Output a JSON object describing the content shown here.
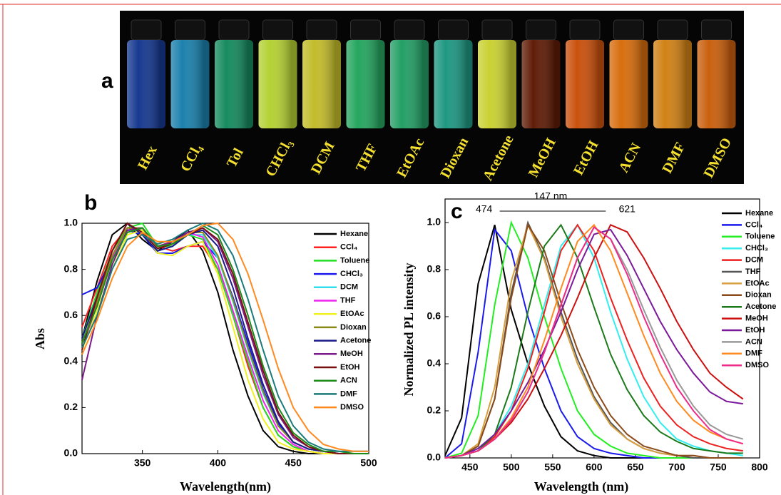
{
  "panel_a": {
    "label": "a",
    "vials": [
      {
        "label": "Hex",
        "color": "#1a3fa0"
      },
      {
        "label": "CCl₄",
        "color": "#1f8fc0"
      },
      {
        "label": "Tol",
        "color": "#1a9a6a"
      },
      {
        "label": "CHCl₃",
        "color": "#c8e83a"
      },
      {
        "label": "DCM",
        "color": "#d8d030"
      },
      {
        "label": "THF",
        "color": "#2ab86a"
      },
      {
        "label": "EtOAc",
        "color": "#28b070"
      },
      {
        "label": "Dioxan",
        "color": "#22a890"
      },
      {
        "label": "Acetone",
        "color": "#e0e838"
      },
      {
        "label": "MeOH",
        "color": "#6a2008"
      },
      {
        "label": "EtOH",
        "color": "#e05a10"
      },
      {
        "label": "ACN",
        "color": "#f07a10"
      },
      {
        "label": "DMF",
        "color": "#e89018"
      },
      {
        "label": "DMSO",
        "color": "#e06a10"
      }
    ]
  },
  "chart_data": [
    {
      "type": "line",
      "panel_label": "b",
      "x_label": "Wavelength(nm)",
      "y_label": "Abs",
      "x": [
        310,
        320,
        330,
        340,
        350,
        360,
        370,
        380,
        390,
        400,
        410,
        420,
        430,
        440,
        450,
        460,
        470,
        480,
        490,
        500
      ],
      "xlim": [
        310,
        500
      ],
      "xticks": [
        350,
        400,
        450,
        500
      ],
      "ylim": [
        0,
        1.0
      ],
      "yticks": [
        {
          "value": 0,
          "label": "0.0"
        },
        {
          "value": 0.2,
          "label": "0.2"
        },
        {
          "value": 0.4,
          "label": "0.4"
        },
        {
          "value": 0.6,
          "label": "0.6"
        },
        {
          "value": 0.8,
          "label": "0.8"
        },
        {
          "value": 1.0,
          "label": "1.0"
        }
      ],
      "series": [
        {
          "name": "Hexane",
          "color": "#000000",
          "values": [
            0.5,
            0.75,
            0.95,
            1.0,
            0.93,
            0.88,
            0.92,
            0.97,
            0.88,
            0.7,
            0.45,
            0.25,
            0.1,
            0.03,
            0.01,
            0,
            0,
            0,
            0,
            0
          ]
        },
        {
          "name": "CCl₄",
          "color": "#ff2020",
          "values": [
            0.55,
            0.72,
            0.9,
            0.98,
            0.97,
            0.9,
            0.88,
            0.9,
            0.9,
            0.8,
            0.6,
            0.38,
            0.2,
            0.08,
            0.03,
            0.01,
            0,
            0,
            0,
            0
          ]
        },
        {
          "name": "Toluene",
          "color": "#22dd22",
          "values": [
            0.5,
            0.7,
            0.88,
            0.98,
            1.0,
            0.9,
            0.9,
            0.95,
            0.93,
            0.8,
            0.6,
            0.4,
            0.2,
            0.08,
            0.03,
            0.01,
            0,
            0,
            0,
            0
          ]
        },
        {
          "name": "CHCl₃",
          "color": "#1a1aee",
          "values": [
            0.69,
            0.72,
            0.85,
            0.97,
            0.95,
            0.87,
            0.87,
            0.9,
            0.92,
            0.85,
            0.68,
            0.48,
            0.28,
            0.13,
            0.05,
            0.02,
            0.01,
            0,
            0,
            0
          ]
        },
        {
          "name": "DCM",
          "color": "#33ddee",
          "values": [
            0.5,
            0.68,
            0.86,
            0.97,
            0.97,
            0.88,
            0.9,
            0.95,
            0.95,
            0.85,
            0.66,
            0.45,
            0.26,
            0.12,
            0.05,
            0.02,
            0.01,
            0,
            0,
            0
          ]
        },
        {
          "name": "THF",
          "color": "#ee22ee",
          "values": [
            0.45,
            0.65,
            0.85,
            0.98,
            0.98,
            0.9,
            0.92,
            0.96,
            0.94,
            0.82,
            0.62,
            0.42,
            0.23,
            0.1,
            0.04,
            0.01,
            0,
            0,
            0,
            0
          ]
        },
        {
          "name": "EtOAc",
          "color": "#f0f020",
          "values": [
            0.45,
            0.62,
            0.8,
            0.95,
            0.97,
            0.87,
            0.86,
            0.9,
            0.92,
            0.78,
            0.55,
            0.32,
            0.15,
            0.05,
            0.02,
            0.01,
            0,
            0,
            0,
            0
          ]
        },
        {
          "name": "Dioxan",
          "color": "#8a8a1a",
          "values": [
            0.48,
            0.66,
            0.86,
            0.98,
            0.98,
            0.9,
            0.91,
            0.96,
            0.96,
            0.86,
            0.67,
            0.46,
            0.27,
            0.12,
            0.05,
            0.02,
            0.01,
            0,
            0,
            0
          ]
        },
        {
          "name": "Acetone",
          "color": "#1a1a88",
          "values": [
            0.5,
            0.68,
            0.88,
            1.0,
            0.95,
            0.88,
            0.9,
            0.95,
            0.97,
            0.9,
            0.72,
            0.5,
            0.3,
            0.14,
            0.05,
            0.02,
            0.01,
            0,
            0,
            0
          ]
        },
        {
          "name": "MeOH",
          "color": "#7a1a8a",
          "values": [
            0.32,
            0.6,
            0.82,
            0.97,
            0.98,
            0.9,
            0.92,
            0.96,
            0.98,
            0.92,
            0.76,
            0.55,
            0.34,
            0.17,
            0.07,
            0.03,
            0.01,
            0,
            0,
            0
          ]
        },
        {
          "name": "EtOH",
          "color": "#7a1010",
          "values": [
            0.45,
            0.68,
            0.88,
            1.0,
            0.96,
            0.89,
            0.91,
            0.95,
            0.98,
            0.93,
            0.78,
            0.57,
            0.36,
            0.18,
            0.08,
            0.03,
            0.01,
            0,
            0,
            0
          ]
        },
        {
          "name": "ACN",
          "color": "#1a8a1a",
          "values": [
            0.48,
            0.64,
            0.84,
            0.96,
            0.98,
            0.9,
            0.91,
            0.95,
            0.99,
            0.95,
            0.8,
            0.6,
            0.38,
            0.2,
            0.09,
            0.04,
            0.01,
            0.01,
            0,
            0
          ]
        },
        {
          "name": "DMF",
          "color": "#1a7a7a",
          "values": [
            0.46,
            0.6,
            0.8,
            0.93,
            0.95,
            0.91,
            0.93,
            0.97,
            1.0,
            0.97,
            0.86,
            0.67,
            0.45,
            0.25,
            0.12,
            0.05,
            0.02,
            0.01,
            0.01,
            0.01
          ]
        },
        {
          "name": "DMSO",
          "color": "#ff8a20",
          "values": [
            0.43,
            0.58,
            0.76,
            0.9,
            0.96,
            0.92,
            0.92,
            0.95,
            0.99,
            1.0,
            0.93,
            0.78,
            0.58,
            0.37,
            0.2,
            0.1,
            0.04,
            0.02,
            0.01,
            0.01
          ]
        }
      ]
    },
    {
      "type": "line",
      "panel_label": "c",
      "x_label": "Wavelength (nm)",
      "y_label": "Normalized PL intensity",
      "peak_labels": [
        474,
        621
      ],
      "span_label": "147 nm",
      "x": [
        420,
        440,
        460,
        480,
        500,
        520,
        540,
        560,
        580,
        600,
        620,
        640,
        660,
        680,
        700,
        720,
        740,
        760,
        780
      ],
      "xlim": [
        420,
        800
      ],
      "xticks": [
        450,
        500,
        550,
        600,
        650,
        700,
        750,
        800
      ],
      "ylim": [
        0,
        1.1
      ],
      "yticks": [
        {
          "value": 0,
          "label": "0.0"
        },
        {
          "value": 0.2,
          "label": "0.2"
        },
        {
          "value": 0.4,
          "label": "0.4"
        },
        {
          "value": 0.6,
          "label": "0.6"
        },
        {
          "value": 0.8,
          "label": "0.8"
        },
        {
          "value": 1.0,
          "label": "1.0"
        }
      ],
      "series": [
        {
          "name": "Hexane",
          "color": "#000000",
          "values": [
            0.01,
            0.17,
            0.74,
            0.99,
            0.63,
            0.4,
            0.22,
            0.09,
            0.03,
            0.01,
            0,
            0,
            0,
            0,
            0,
            0,
            0,
            0,
            0
          ]
        },
        {
          "name": "CCl₄",
          "color": "#1a1aee",
          "values": [
            0,
            0.06,
            0.45,
            0.97,
            0.88,
            0.6,
            0.38,
            0.2,
            0.09,
            0.04,
            0.02,
            0.01,
            0,
            0,
            0,
            0,
            0,
            0,
            0
          ]
        },
        {
          "name": "Toluene",
          "color": "#22ee22",
          "values": [
            0,
            0.02,
            0.18,
            0.65,
            1.0,
            0.85,
            0.6,
            0.38,
            0.2,
            0.1,
            0.05,
            0.02,
            0.01,
            0,
            0,
            0,
            0,
            0,
            0
          ]
        },
        {
          "name": "CHCl₃",
          "color": "#33eeee",
          "values": [
            0,
            0.01,
            0.04,
            0.1,
            0.22,
            0.4,
            0.65,
            0.9,
            0.99,
            0.85,
            0.62,
            0.42,
            0.26,
            0.15,
            0.08,
            0.05,
            0.03,
            0.02,
            0.01
          ]
        },
        {
          "name": "DCM",
          "color": "#ee2020",
          "values": [
            0,
            0.01,
            0.03,
            0.09,
            0.2,
            0.38,
            0.62,
            0.88,
            0.99,
            0.88,
            0.68,
            0.5,
            0.34,
            0.22,
            0.14,
            0.09,
            0.06,
            0.04,
            0.03
          ]
        },
        {
          "name": "THF",
          "color": "#555555",
          "values": [
            0,
            0.01,
            0.05,
            0.25,
            0.7,
            1.0,
            0.85,
            0.62,
            0.42,
            0.26,
            0.15,
            0.08,
            0.04,
            0.02,
            0.01,
            0,
            0,
            0,
            0
          ]
        },
        {
          "name": "EtOAc",
          "color": "#d8a040",
          "values": [
            0,
            0.01,
            0.06,
            0.3,
            0.75,
            0.99,
            0.84,
            0.6,
            0.4,
            0.25,
            0.14,
            0.08,
            0.04,
            0.02,
            0.01,
            0.01,
            0,
            0,
            0
          ]
        },
        {
          "name": "Dioxan",
          "color": "#8a4a1a",
          "values": [
            0,
            0.01,
            0.05,
            0.25,
            0.68,
            0.99,
            0.88,
            0.66,
            0.46,
            0.3,
            0.18,
            0.1,
            0.05,
            0.03,
            0.01,
            0.01,
            0,
            0,
            0
          ]
        },
        {
          "name": "Acetone",
          "color": "#1a7a1a",
          "values": [
            0,
            0.01,
            0.03,
            0.1,
            0.3,
            0.62,
            0.9,
            0.99,
            0.85,
            0.64,
            0.44,
            0.29,
            0.18,
            0.11,
            0.07,
            0.04,
            0.03,
            0.02,
            0.02
          ]
        },
        {
          "name": "MeOH",
          "color": "#cc1010",
          "values": [
            0,
            0.01,
            0.03,
            0.08,
            0.15,
            0.25,
            0.38,
            0.52,
            0.68,
            0.85,
            0.99,
            0.96,
            0.85,
            0.72,
            0.58,
            0.46,
            0.36,
            0.3,
            0.25
          ]
        },
        {
          "name": "EtOH",
          "color": "#7a1a9a",
          "values": [
            0,
            0.01,
            0.04,
            0.1,
            0.2,
            0.32,
            0.46,
            0.62,
            0.8,
            0.95,
            0.97,
            0.86,
            0.72,
            0.58,
            0.46,
            0.36,
            0.28,
            0.24,
            0.23
          ]
        },
        {
          "name": "ACN",
          "color": "#999999",
          "values": [
            0,
            0.01,
            0.03,
            0.08,
            0.16,
            0.28,
            0.45,
            0.65,
            0.85,
            0.98,
            0.93,
            0.8,
            0.63,
            0.47,
            0.33,
            0.22,
            0.14,
            0.1,
            0.08
          ]
        },
        {
          "name": "DMF",
          "color": "#ff8a20",
          "values": [
            0,
            0.01,
            0.03,
            0.08,
            0.17,
            0.3,
            0.5,
            0.72,
            0.92,
            0.99,
            0.88,
            0.7,
            0.52,
            0.36,
            0.24,
            0.16,
            0.11,
            0.08,
            0.06
          ]
        },
        {
          "name": "DMSO",
          "color": "#ee2a8a",
          "values": [
            0,
            0.01,
            0.03,
            0.08,
            0.16,
            0.28,
            0.45,
            0.65,
            0.85,
            0.98,
            0.93,
            0.78,
            0.6,
            0.44,
            0.3,
            0.2,
            0.12,
            0.08,
            0.06
          ]
        }
      ]
    }
  ]
}
